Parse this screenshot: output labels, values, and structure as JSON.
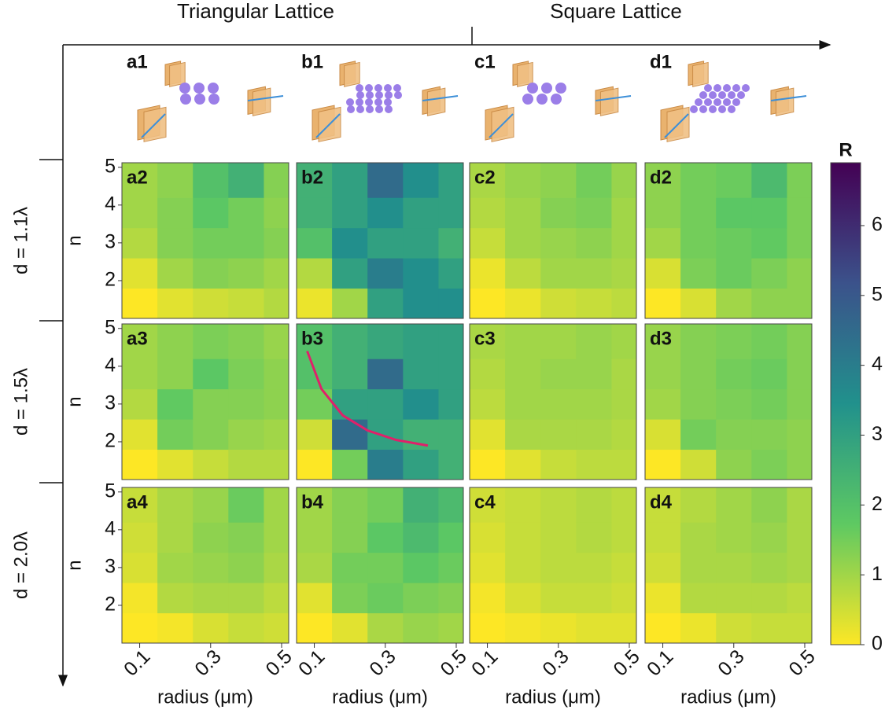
{
  "header": {
    "left": "Triangular Lattice",
    "right": "Square Lattice"
  },
  "illustration_labels": [
    "a1",
    "b1",
    "c1",
    "d1"
  ],
  "chart_data": {
    "type": "heatmap",
    "x_label": "radius (μm)",
    "y_label": "n",
    "xlim": [
      0.05,
      0.52
    ],
    "ylim": [
      1,
      5.12
    ],
    "xticks": [
      0.1,
      0.3,
      0.5
    ],
    "yticks": [
      2,
      3,
      4,
      5
    ],
    "x_edges": [
      0.05,
      0.15,
      0.25,
      0.35,
      0.45,
      0.52
    ],
    "y_edges": [
      1,
      1.8,
      2.6,
      3.4,
      4.2,
      5.12
    ],
    "colormap": "viridis_r",
    "rows": [
      {
        "label": "d = 1.1λ",
        "panels": [
          {
            "label": "a2",
            "z": [
              [
                0,
                0.3,
                0.5,
                0.6,
                0.8
              ],
              [
                0.3,
                1,
                1.3,
                1.2,
                1
              ],
              [
                0.8,
                1.3,
                1.5,
                1.5,
                1.3
              ],
              [
                1,
                1.3,
                1.8,
                1.5,
                1.2
              ],
              [
                1,
                1.2,
                2,
                2.5,
                1.3
              ]
            ]
          },
          {
            "label": "b2",
            "z": [
              [
                0.2,
                1,
                3,
                3.5,
                3.5
              ],
              [
                0.8,
                3,
                4,
                3.5,
                3
              ],
              [
                2,
                3.5,
                3,
                3,
                2.5
              ],
              [
                2.5,
                3,
                3.5,
                3,
                3
              ],
              [
                2.5,
                3,
                4.5,
                3.5,
                3
              ]
            ]
          },
          {
            "label": "c2",
            "z": [
              [
                0,
                0.2,
                0.5,
                0.6,
                0.7
              ],
              [
                0.2,
                0.7,
                1,
                1,
                0.9
              ],
              [
                0.6,
                1,
                1.1,
                1.2,
                1
              ],
              [
                0.8,
                1,
                1.3,
                1.4,
                1
              ],
              [
                0.9,
                1.1,
                1.2,
                1.5,
                1.1
              ]
            ]
          },
          {
            "label": "d2",
            "z": [
              [
                0,
                0.4,
                1,
                1.2,
                1.2
              ],
              [
                0.4,
                1.4,
                1.6,
                1.4,
                1.2
              ],
              [
                1,
                1.5,
                1.6,
                1.7,
                1.4
              ],
              [
                1.2,
                1.5,
                1.8,
                1.8,
                1.4
              ],
              [
                1.2,
                1.5,
                1.6,
                2.2,
                1.4
              ]
            ]
          }
        ]
      },
      {
        "label": "d = 1.5λ",
        "panels": [
          {
            "label": "a3",
            "z": [
              [
                0,
                0.3,
                0.6,
                0.8,
                0.8
              ],
              [
                0.3,
                1.5,
                1.3,
                1.1,
                1
              ],
              [
                0.8,
                1.7,
                1.3,
                1.3,
                1.2
              ],
              [
                1,
                1.2,
                1.8,
                1.4,
                1.2
              ],
              [
                1,
                1.2,
                1.4,
                1.3,
                1.1
              ]
            ]
          },
          {
            "label": "b3",
            "z": [
              [
                0,
                1.5,
                4,
                3,
                2.5
              ],
              [
                0.5,
                4.5,
                3,
                2.5,
                2.5
              ],
              [
                1.5,
                3,
                3,
                3.5,
                3
              ],
              [
                2,
                2.5,
                4.5,
                3,
                3
              ],
              [
                2,
                2.5,
                2.8,
                3,
                3
              ]
            ],
            "curve": {
              "color": "#e0206a",
              "x": [
                0.08,
                0.12,
                0.18,
                0.25,
                0.33,
                0.42
              ],
              "y": [
                4.4,
                3.4,
                2.7,
                2.3,
                2.05,
                1.9
              ]
            }
          },
          {
            "label": "c3",
            "z": [
              [
                0,
                0.3,
                0.6,
                0.7,
                0.7
              ],
              [
                0.3,
                0.9,
                0.9,
                0.9,
                0.8
              ],
              [
                0.7,
                1,
                1,
                1,
                0.9
              ],
              [
                0.8,
                1,
                1.1,
                1.1,
                0.9
              ],
              [
                0.9,
                1,
                1,
                1.1,
                1
              ]
            ]
          },
          {
            "label": "d3",
            "z": [
              [
                0,
                0.5,
                1.2,
                1.4,
                1.2
              ],
              [
                0.4,
                1.5,
                1.3,
                1.3,
                1.2
              ],
              [
                1,
                1.3,
                1.4,
                1.5,
                1.3
              ],
              [
                1.1,
                1.3,
                1.5,
                1.6,
                1.3
              ],
              [
                1.1,
                1.3,
                1.4,
                1.5,
                1.3
              ]
            ]
          }
        ]
      },
      {
        "label": "d = 2.0λ",
        "panels": [
          {
            "label": "a4",
            "z": [
              [
                0,
                0.1,
                0.4,
                0.6,
                0.5
              ],
              [
                0.1,
                0.8,
                0.9,
                0.9,
                0.7
              ],
              [
                0.4,
                1,
                1.1,
                1.2,
                0.9
              ],
              [
                0.5,
                0.9,
                1.2,
                1.3,
                1
              ],
              [
                0.6,
                0.9,
                1.1,
                1.6,
                1
              ]
            ]
          },
          {
            "label": "b4",
            "z": [
              [
                0,
                0.3,
                0.9,
                1.1,
                1
              ],
              [
                0.3,
                1.4,
                1.6,
                1.4,
                1.3
              ],
              [
                0.9,
                1.5,
                1.5,
                1.8,
                1.6
              ],
              [
                1,
                1.3,
                1.8,
                2.2,
                1.8
              ],
              [
                1,
                1.3,
                1.5,
                2.5,
                2.2
              ]
            ]
          },
          {
            "label": "c4",
            "z": [
              [
                0,
                0.1,
                0.2,
                0.3,
                0.3
              ],
              [
                0.1,
                0.4,
                0.6,
                0.6,
                0.5
              ],
              [
                0.3,
                0.6,
                0.7,
                0.7,
                0.6
              ],
              [
                0.4,
                0.6,
                0.7,
                0.8,
                0.7
              ],
              [
                0.5,
                0.6,
                0.7,
                0.8,
                0.7
              ]
            ]
          },
          {
            "label": "d4",
            "z": [
              [
                0,
                0.2,
                0.5,
                0.6,
                0.6
              ],
              [
                0.2,
                0.8,
                0.8,
                0.8,
                0.7
              ],
              [
                0.5,
                0.9,
                0.9,
                1,
                0.9
              ],
              [
                0.6,
                0.9,
                1,
                1.1,
                0.9
              ],
              [
                0.6,
                0.8,
                1,
                1.2,
                0.9
              ]
            ]
          }
        ]
      }
    ],
    "colorbar": {
      "title": "R",
      "zlim": [
        0,
        6.9
      ],
      "ticks": [
        0,
        1,
        2,
        3,
        4,
        5,
        6
      ]
    }
  }
}
